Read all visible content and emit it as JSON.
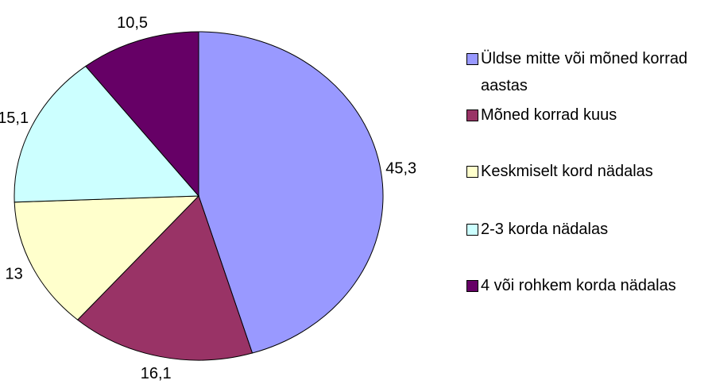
{
  "chart_data": {
    "type": "pie",
    "categories": [
      "Üldse mitte või mõned korrad aastas",
      "Mõned korrad kuus",
      "Keskmiselt kord nädalas",
      "2-3 korda nädalas",
      "4 või rohkem korda nädalas"
    ],
    "values": [
      45.3,
      16.1,
      13,
      15.1,
      10.5
    ],
    "value_labels": [
      "45,3",
      "16,1",
      "13",
      "15,1",
      "10,5"
    ],
    "colors": [
      "#9999ff",
      "#993366",
      "#ffffcc",
      "#ccffff",
      "#660066"
    ],
    "legend": "right"
  }
}
